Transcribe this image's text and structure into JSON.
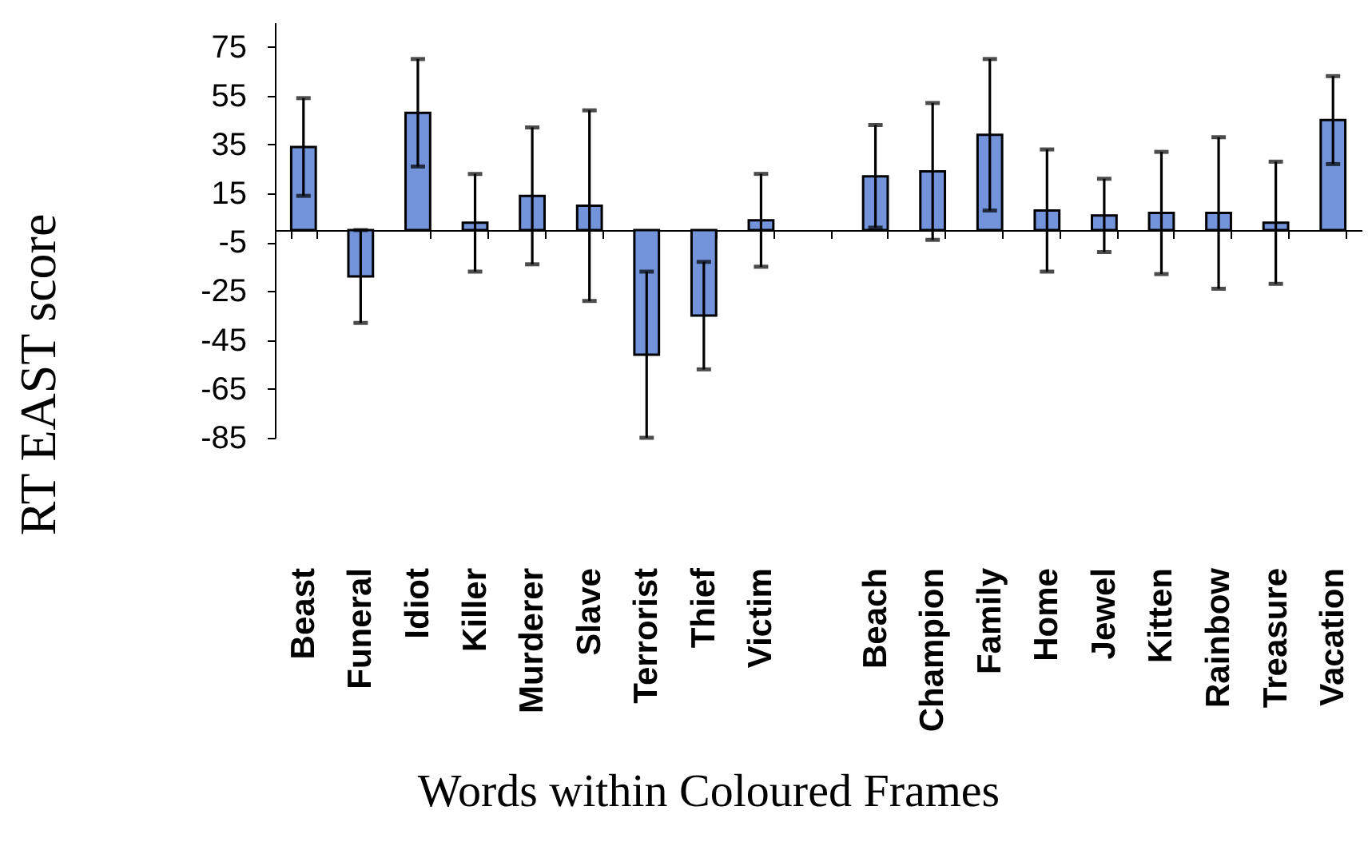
{
  "chart_data": {
    "type": "bar",
    "xlabel": "Words within Coloured Frames",
    "ylabel": "RT EAST score",
    "categories": [
      "Beast",
      "Funeral",
      "Idiot",
      "Killer",
      "Murderer",
      "Slave",
      "Terrorist",
      "Thief",
      "Victim",
      null,
      "Beach",
      "Champion",
      "Family",
      "Home",
      "Jewel",
      "Kitten",
      "Rainbow",
      "Treasure",
      "Vacation"
    ],
    "values": [
      34,
      -19,
      48,
      3,
      14,
      10,
      -51,
      -35,
      4,
      null,
      22,
      24,
      39,
      8,
      6,
      7,
      7,
      3,
      45
    ],
    "errors": [
      20,
      19,
      22,
      20,
      28,
      39,
      34,
      22,
      19,
      null,
      21,
      28,
      31,
      25,
      15,
      25,
      31,
      25,
      18
    ],
    "color": "#7393db",
    "ylim": [
      -85,
      85
    ],
    "yticks": [
      75,
      55,
      35,
      15,
      -5,
      -25,
      -45,
      -65,
      -85
    ]
  }
}
